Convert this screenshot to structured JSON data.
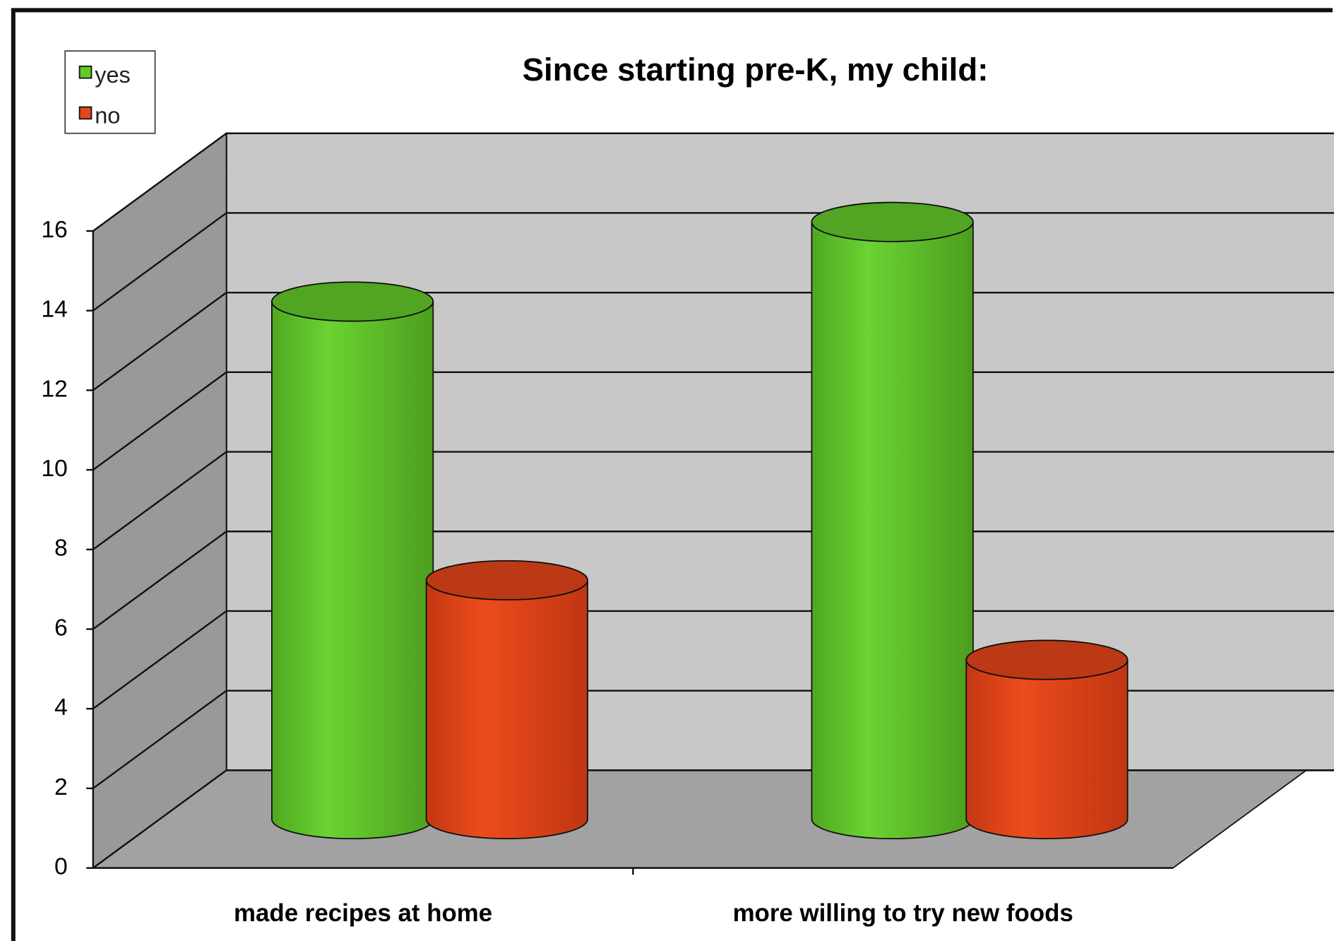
{
  "chart_data": {
    "type": "bar3d",
    "title": "Since starting pre-K, my child:",
    "categories": [
      "made recipes at home",
      "more willing to try new foods"
    ],
    "series": [
      {
        "name": "yes",
        "color": "#63c92a",
        "values": [
          13,
          15
        ]
      },
      {
        "name": "no",
        "color": "#e4461a",
        "values": [
          6,
          4
        ]
      }
    ],
    "ylim": [
      0,
      16
    ],
    "yticks": [
      0,
      2,
      4,
      6,
      8,
      10,
      12,
      14,
      16
    ],
    "grid": true,
    "legend": "top-left"
  }
}
